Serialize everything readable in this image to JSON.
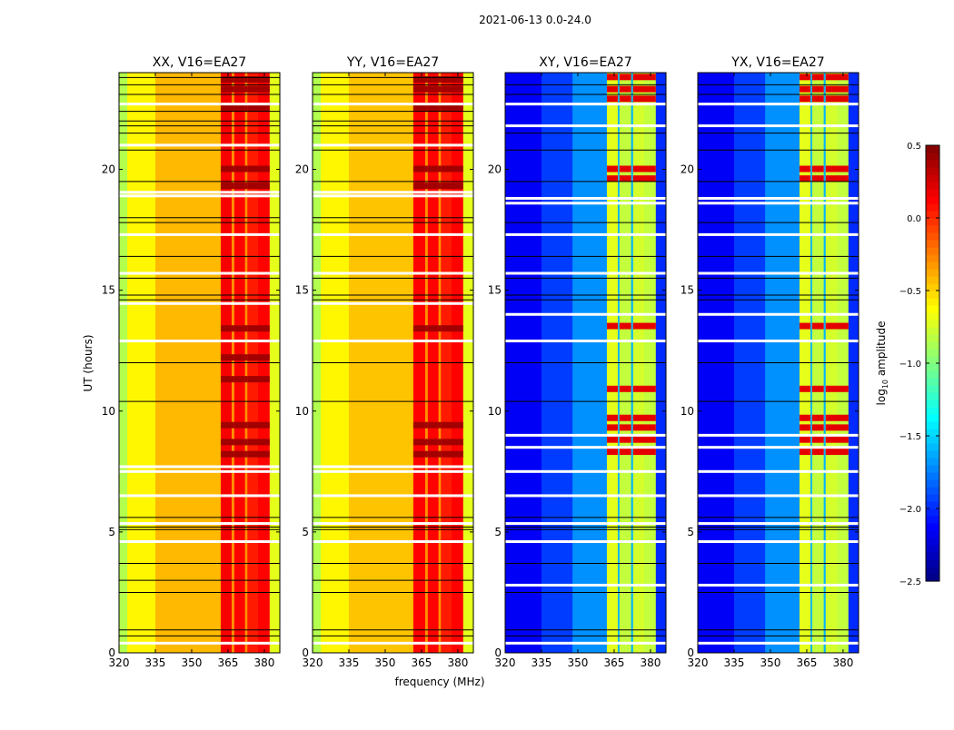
{
  "chart_data": {
    "type": "heatmap",
    "title": "2021-06-13 0.0-24.0",
    "xlabel": "frequency (MHz)",
    "ylabel": "UT (hours)",
    "xlim": [
      320,
      386.4
    ],
    "ylim": [
      0,
      24
    ],
    "xticks": [
      "320",
      "335",
      "350",
      "365",
      "380"
    ],
    "xtick_values": [
      320,
      335,
      350,
      365,
      380
    ],
    "yticks": [
      "0",
      "5",
      "10",
      "15",
      "20"
    ],
    "ytick_values": [
      0,
      5,
      10,
      15,
      20
    ],
    "colorbar": {
      "label_main": "log",
      "label_sub": "10",
      "label_rest": " amplitude",
      "range": [
        -2.5,
        0.5
      ],
      "ticks": [
        "0.5",
        "0.0",
        "−0.5",
        "−1.0",
        "−1.5",
        "−2.0",
        "−2.5"
      ],
      "tick_values": [
        0.5,
        0.0,
        -0.5,
        -1.0,
        -1.5,
        -2.0,
        -2.5
      ],
      "colormap": "jet"
    },
    "panels": [
      {
        "title": "XX, V16=EA27",
        "bands": [
          [
            320,
            323.4,
            -0.85
          ],
          [
            323.4,
            335,
            -0.6
          ],
          [
            335,
            362,
            -0.42
          ],
          [
            362,
            366.5,
            0.15
          ],
          [
            366.5,
            367.6,
            -0.3
          ],
          [
            367.6,
            372,
            0.12
          ],
          [
            372,
            373,
            -0.3
          ],
          [
            373,
            377.4,
            0.05
          ],
          [
            377.4,
            382.2,
            0.12
          ],
          [
            382.2,
            386.4,
            -0.7
          ]
        ],
        "rfi_hours": [
          8.2,
          8.7,
          9.4,
          11.3,
          12.2,
          13.4,
          19.3,
          20.0,
          22.5,
          23.3,
          23.7
        ],
        "rfi_value": 0.4,
        "white_hours": [
          0.4,
          4.6,
          5.35,
          6.5,
          7.5,
          7.7,
          12.9,
          14.45,
          15.7,
          17.3,
          18.9,
          19.05,
          21.0,
          22.7
        ],
        "black_hours": [
          0.7,
          0.95,
          2.5,
          3.0,
          3.7,
          5.1,
          5.2,
          5.6,
          10.4,
          12.0,
          14.6,
          14.8,
          15.5,
          16.4,
          17.8,
          18.0,
          19.5,
          20.8,
          21.5,
          21.8,
          22.0,
          22.4,
          23.1,
          23.5,
          23.8
        ]
      },
      {
        "title": "YY, V16=EA27",
        "bands": [
          [
            320,
            323.4,
            -0.85
          ],
          [
            323.4,
            335,
            -0.6
          ],
          [
            335,
            361.6,
            -0.45
          ],
          [
            361.6,
            366.5,
            0.12
          ],
          [
            366.5,
            367.6,
            -0.3
          ],
          [
            367.6,
            372,
            0.12
          ],
          [
            372,
            373,
            -0.3
          ],
          [
            373,
            377.4,
            0.05
          ],
          [
            377.4,
            382.2,
            0.12
          ],
          [
            382.2,
            386.4,
            -0.7
          ]
        ],
        "rfi_hours": [
          8.2,
          8.7,
          9.4,
          13.4,
          19.3,
          20.0,
          22.5,
          23.3,
          23.7
        ],
        "rfi_value": 0.4,
        "white_hours": [
          0.4,
          4.6,
          5.35,
          6.5,
          7.5,
          7.7,
          12.9,
          14.45,
          15.7,
          17.3,
          18.9,
          19.05,
          21.0,
          22.7
        ],
        "black_hours": [
          0.7,
          0.95,
          2.5,
          3.0,
          3.7,
          5.1,
          5.2,
          5.6,
          10.4,
          12.0,
          14.6,
          14.8,
          15.5,
          16.4,
          17.8,
          18.0,
          19.5,
          20.8,
          21.5,
          21.8,
          22.0,
          22.4,
          23.1,
          23.5,
          23.8
        ]
      },
      {
        "title": "XY, V16=EA27",
        "bands": [
          [
            320,
            335,
            -2.15
          ],
          [
            335,
            347.8,
            -1.95
          ],
          [
            347.8,
            362,
            -1.7
          ],
          [
            362,
            366.5,
            -0.7
          ],
          [
            366.5,
            367.2,
            -1.6
          ],
          [
            367.2,
            372,
            -0.8
          ],
          [
            372,
            372.8,
            -1.6
          ],
          [
            372.8,
            377.4,
            -0.75
          ],
          [
            377.4,
            382.2,
            -0.8
          ],
          [
            382.2,
            386.4,
            -2.0
          ]
        ],
        "rfi_hours": [
          8.3,
          8.8,
          9.3,
          9.7,
          10.9,
          13.5,
          19.6,
          20.0,
          22.9,
          23.3,
          23.8
        ],
        "rfi_value": 0.2,
        "white_hours": [
          0.4,
          2.8,
          4.6,
          5.35,
          6.5,
          7.5,
          8.5,
          9.0,
          12.9,
          14.0,
          15.7,
          17.3,
          18.6,
          18.8,
          21.8,
          22.7
        ],
        "black_hours": [
          0.7,
          0.95,
          2.5,
          3.7,
          5.1,
          5.2,
          5.6,
          10.4,
          12.0,
          14.6,
          14.8,
          15.5,
          16.4,
          17.8,
          19.5,
          20.8,
          21.5,
          23.1,
          23.5
        ]
      },
      {
        "title": "YX, V16=EA27",
        "bands": [
          [
            320,
            335,
            -2.15
          ],
          [
            335,
            347.8,
            -1.95
          ],
          [
            347.8,
            362,
            -1.7
          ],
          [
            362,
            366.5,
            -0.7
          ],
          [
            366.5,
            367.2,
            -1.6
          ],
          [
            367.2,
            372,
            -0.8
          ],
          [
            372,
            372.8,
            -1.6
          ],
          [
            372.8,
            377.4,
            -0.75
          ],
          [
            377.4,
            382.2,
            -0.8
          ],
          [
            382.2,
            386.4,
            -2.0
          ]
        ],
        "rfi_hours": [
          8.3,
          8.8,
          9.3,
          9.7,
          10.9,
          13.5,
          19.6,
          20.0,
          22.9,
          23.3,
          23.8
        ],
        "rfi_value": 0.2,
        "white_hours": [
          0.4,
          2.8,
          4.6,
          5.35,
          6.5,
          7.5,
          8.5,
          9.0,
          12.9,
          14.0,
          15.7,
          17.3,
          18.6,
          18.8,
          21.8,
          22.7
        ],
        "black_hours": [
          0.7,
          0.95,
          2.5,
          3.7,
          5.1,
          5.2,
          5.6,
          10.4,
          12.0,
          14.6,
          14.8,
          15.5,
          16.4,
          17.8,
          19.5,
          20.8,
          21.5,
          23.1,
          23.5
        ]
      }
    ]
  }
}
